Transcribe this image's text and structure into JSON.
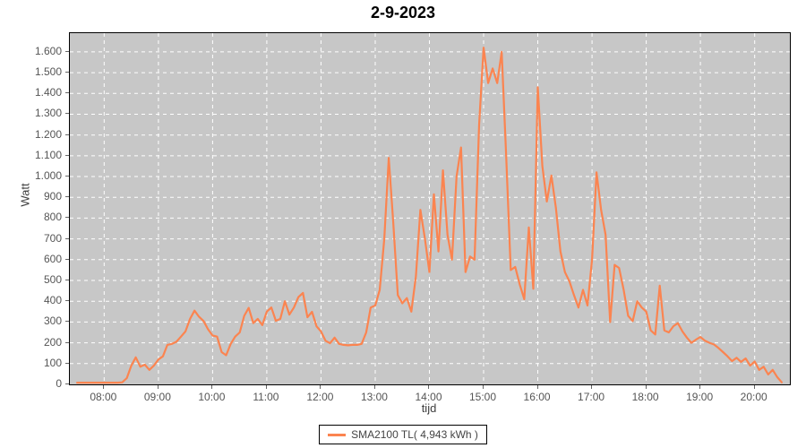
{
  "title": "2-9-2023",
  "chart_data": {
    "type": "line",
    "title": "2-9-2023",
    "xlabel": "tijd",
    "ylabel": "Watt",
    "legend_position": "bottom",
    "grid": true,
    "plot_bg": "#c7c7c7",
    "gridline_color": "#ffffff",
    "tick_color": "#666666",
    "ylim": [
      0,
      1690
    ],
    "x_range": [
      "07:22",
      "20:39"
    ],
    "y_tick_values": [
      0,
      100,
      200,
      300,
      400,
      500,
      600,
      700,
      800,
      900,
      1000,
      1100,
      1200,
      1300,
      1400,
      1500,
      1600
    ],
    "y_tick_labels": [
      "0",
      "100",
      "200",
      "300",
      "400",
      "500",
      "600",
      "700",
      "800",
      "900",
      "1.000",
      "1.100",
      "1.200",
      "1.300",
      "1.400",
      "1.500",
      "1.600"
    ],
    "x_ticks": [
      "08:00",
      "09:00",
      "10:00",
      "11:00",
      "12:00",
      "13:00",
      "14:00",
      "15:00",
      "16:00",
      "17:00",
      "18:00",
      "19:00",
      "20:00"
    ],
    "series": [
      {
        "name": "SMA2100 TL( 4,943 kWh )",
        "color": "#fb8450",
        "x": [
          "07:30",
          "07:35",
          "07:40",
          "07:45",
          "07:50",
          "07:55",
          "08:00",
          "08:05",
          "08:10",
          "08:15",
          "08:20",
          "08:25",
          "08:30",
          "08:35",
          "08:40",
          "08:45",
          "08:50",
          "08:55",
          "09:00",
          "09:05",
          "09:10",
          "09:15",
          "09:20",
          "09:25",
          "09:30",
          "09:35",
          "09:40",
          "09:45",
          "09:50",
          "09:55",
          "10:00",
          "10:05",
          "10:10",
          "10:15",
          "10:20",
          "10:25",
          "10:30",
          "10:35",
          "10:40",
          "10:45",
          "10:50",
          "10:55",
          "11:00",
          "11:05",
          "11:10",
          "11:15",
          "11:20",
          "11:25",
          "11:30",
          "11:35",
          "11:40",
          "11:45",
          "11:50",
          "11:55",
          "12:00",
          "12:05",
          "12:10",
          "12:15",
          "12:20",
          "12:25",
          "12:30",
          "12:35",
          "12:40",
          "12:45",
          "12:50",
          "12:55",
          "13:00",
          "13:05",
          "13:10",
          "13:15",
          "13:20",
          "13:25",
          "13:30",
          "13:35",
          "13:40",
          "13:45",
          "13:50",
          "13:55",
          "14:00",
          "14:05",
          "14:10",
          "14:15",
          "14:20",
          "14:25",
          "14:30",
          "14:35",
          "14:40",
          "14:45",
          "14:50",
          "14:55",
          "15:00",
          "15:05",
          "15:10",
          "15:15",
          "15:20",
          "15:25",
          "15:30",
          "15:35",
          "15:40",
          "15:45",
          "15:50",
          "15:55",
          "16:00",
          "16:05",
          "16:10",
          "16:15",
          "16:20",
          "16:25",
          "16:30",
          "16:35",
          "16:40",
          "16:45",
          "16:50",
          "16:55",
          "17:00",
          "17:05",
          "17:10",
          "17:15",
          "17:20",
          "17:25",
          "17:30",
          "17:35",
          "17:40",
          "17:45",
          "17:50",
          "17:55",
          "18:00",
          "18:05",
          "18:10",
          "18:15",
          "18:20",
          "18:25",
          "18:30",
          "18:35",
          "18:40",
          "18:45",
          "18:50",
          "18:55",
          "19:00",
          "19:05",
          "19:10",
          "19:15",
          "19:20",
          "19:25",
          "19:30",
          "19:35",
          "19:40",
          "19:45",
          "19:50",
          "19:55",
          "20:00",
          "20:05",
          "20:10",
          "20:15",
          "20:20",
          "20:25",
          "20:30"
        ],
        "values": [
          8,
          8,
          8,
          8,
          8,
          8,
          8,
          8,
          8,
          8,
          10,
          30,
          90,
          130,
          85,
          95,
          70,
          90,
          120,
          135,
          190,
          195,
          205,
          230,
          255,
          315,
          355,
          325,
          305,
          265,
          235,
          230,
          155,
          140,
          195,
          230,
          250,
          330,
          368,
          295,
          315,
          285,
          350,
          370,
          306,
          315,
          400,
          336,
          370,
          420,
          440,
          323,
          349,
          280,
          255,
          210,
          198,
          225,
          195,
          190,
          188,
          190,
          190,
          195,
          250,
          370,
          380,
          455,
          700,
          1090,
          780,
          430,
          390,
          415,
          350,
          520,
          840,
          700,
          540,
          915,
          640,
          1030,
          720,
          600,
          1000,
          1140,
          540,
          615,
          600,
          1250,
          1620,
          1450,
          1520,
          1450,
          1600,
          1100,
          550,
          565,
          480,
          410,
          755,
          460,
          1430,
          1050,
          880,
          1005,
          850,
          640,
          540,
          495,
          430,
          370,
          455,
          380,
          600,
          1020,
          840,
          720,
          300,
          575,
          560,
          455,
          330,
          305,
          400,
          370,
          350,
          260,
          240,
          475,
          260,
          250,
          280,
          295,
          255,
          225,
          200,
          215,
          228,
          210,
          200,
          192,
          175,
          155,
          135,
          112,
          128,
          108,
          125,
          90,
          110,
          70,
          85,
          48,
          70,
          35,
          10
        ]
      }
    ]
  }
}
